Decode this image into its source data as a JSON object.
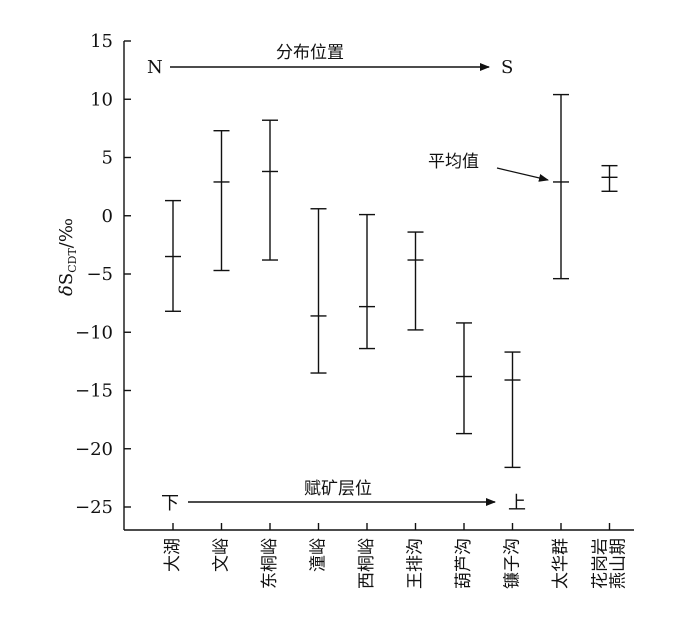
{
  "chart_data": {
    "type": "errorbar",
    "ylabel": "δS_CDT/‰",
    "ylim": [
      -25,
      15
    ],
    "y_ticks": [
      15,
      10,
      5,
      0,
      -5,
      -10,
      -15,
      -20,
      -25
    ],
    "y_tick_labels": [
      "15",
      "10",
      "5",
      "0",
      "−5",
      "−10",
      "−15",
      "−20",
      "−25"
    ],
    "grid": false,
    "categories": [
      "大湖",
      "文峪",
      "东桐峪",
      "潼峪",
      "西桐峪",
      "王排沟",
      "葫芦沟",
      "镰子沟",
      "太华群",
      "燕山期花岗岩"
    ],
    "category_lines": [
      [
        "大湖"
      ],
      [
        "文峪"
      ],
      [
        "东桐峪"
      ],
      [
        "潼峪"
      ],
      [
        "西桐峪"
      ],
      [
        "王排沟"
      ],
      [
        "葫芦沟"
      ],
      [
        "镰子沟"
      ],
      [
        "太华群"
      ],
      [
        "燕山期",
        "花岗岩"
      ]
    ],
    "max": [
      1.3,
      7.3,
      8.2,
      0.6,
      0.1,
      -1.4,
      -9.2,
      -11.7,
      10.4,
      4.3
    ],
    "mean": [
      -3.5,
      2.9,
      3.8,
      -8.6,
      -7.8,
      -3.8,
      -13.8,
      -14.1,
      2.9,
      3.3
    ],
    "min": [
      -8.2,
      -4.7,
      -3.8,
      -13.5,
      -11.4,
      -9.8,
      -18.7,
      -21.6,
      -5.4,
      2.1
    ],
    "annotations": {
      "top_left": "N",
      "top_center": "分布位置",
      "top_right": "S",
      "bottom_left": "下",
      "bottom_center": "赋矿层位",
      "bottom_right": "上",
      "mean_label": "平均值"
    }
  },
  "colors": {
    "ink": "#111111",
    "background": "#ffffff"
  }
}
